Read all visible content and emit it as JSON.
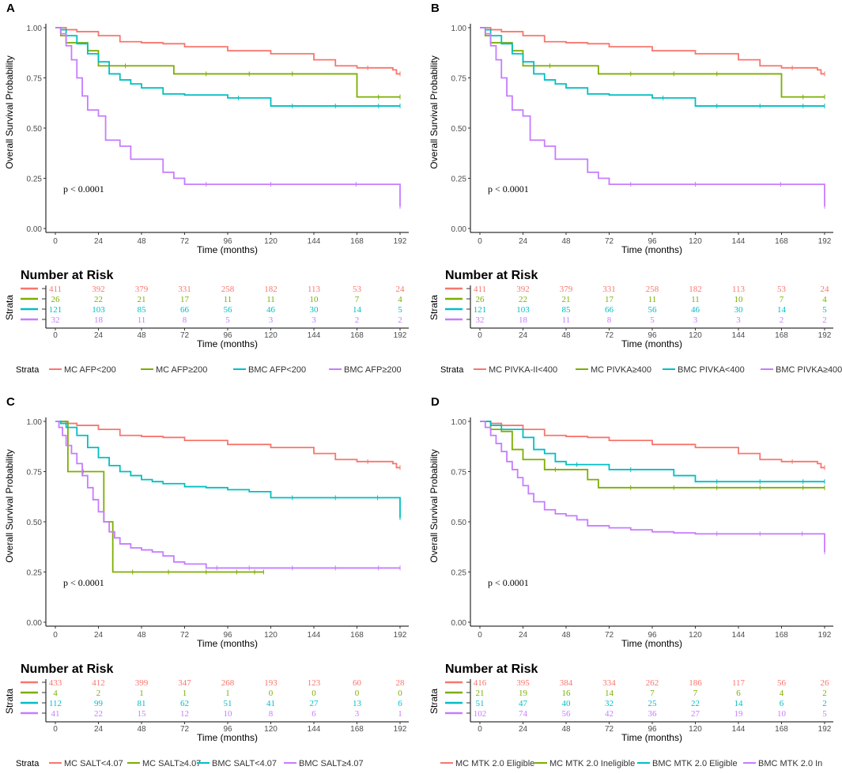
{
  "colors": [
    "#F8766D",
    "#7CAE00",
    "#00BFC4",
    "#C77CFF"
  ],
  "chart_data": [
    {
      "type": "line",
      "panel": "A",
      "title": "",
      "ylabel": "Overall Survival Probability",
      "xlabel": "Time (months)",
      "xlim": [
        0,
        192
      ],
      "ylim": [
        0,
        1
      ],
      "xticks": [
        "0",
        "24",
        "48",
        "72",
        "96",
        "120",
        "144",
        "168",
        "192"
      ],
      "yticks": [
        "0.00",
        "0.25",
        "0.50",
        "0.75",
        "1.00"
      ],
      "pvalue": "p < 0.0001",
      "legend_title": "Strata",
      "risk_title": "Number at Risk",
      "risk_ylabel": "Strata",
      "series": [
        {
          "name": "MC AFP<200",
          "x": [
            0,
            6,
            12,
            24,
            36,
            48,
            60,
            72,
            96,
            120,
            144,
            156,
            168,
            180,
            188,
            190,
            192
          ],
          "y": [
            1,
            0.99,
            0.98,
            0.96,
            0.93,
            0.925,
            0.92,
            0.905,
            0.885,
            0.87,
            0.84,
            0.81,
            0.8,
            0.8,
            0.79,
            0.77,
            0.77
          ],
          "risk": [
            "411",
            "392",
            "379",
            "331",
            "258",
            "182",
            "113",
            "53",
            "24"
          ]
        },
        {
          "name": "MC AFP≥200",
          "x": [
            0,
            3,
            6,
            12,
            18,
            24,
            30,
            48,
            66,
            72,
            96,
            120,
            144,
            168,
            192
          ],
          "y": [
            1,
            0.96,
            0.925,
            0.925,
            0.885,
            0.81,
            0.81,
            0.81,
            0.77,
            0.77,
            0.77,
            0.77,
            0.77,
            0.655,
            0.655
          ],
          "risk": [
            "26",
            "22",
            "21",
            "17",
            "11",
            "11",
            "10",
            "7",
            "4"
          ]
        },
        {
          "name": "BMC AFP<200",
          "x": [
            0,
            3,
            6,
            12,
            18,
            24,
            30,
            36,
            42,
            48,
            60,
            72,
            96,
            108,
            120,
            144,
            168,
            192
          ],
          "y": [
            1,
            0.99,
            0.96,
            0.92,
            0.87,
            0.83,
            0.77,
            0.74,
            0.72,
            0.7,
            0.67,
            0.665,
            0.65,
            0.65,
            0.61,
            0.61,
            0.61,
            0.61
          ],
          "risk": [
            "121",
            "103",
            "85",
            "66",
            "56",
            "46",
            "30",
            "14",
            "5"
          ]
        },
        {
          "name": "BMC AFP≥200",
          "x": [
            0,
            3,
            6,
            9,
            12,
            15,
            18,
            24,
            28,
            36,
            42,
            60,
            66,
            72,
            96,
            144,
            191,
            192
          ],
          "y": [
            1,
            0.97,
            0.91,
            0.84,
            0.75,
            0.66,
            0.59,
            0.56,
            0.44,
            0.41,
            0.345,
            0.28,
            0.25,
            0.22,
            0.22,
            0.22,
            0.22,
            0.11
          ],
          "risk": [
            "32",
            "18",
            "11",
            "8",
            "5",
            "3",
            "3",
            "2",
            "2"
          ]
        }
      ]
    },
    {
      "type": "line",
      "panel": "B",
      "title": "",
      "ylabel": "Overall Survival Probability",
      "xlabel": "Time (months)",
      "xlim": [
        0,
        192
      ],
      "ylim": [
        0,
        1
      ],
      "xticks": [
        "0",
        "24",
        "48",
        "72",
        "96",
        "120",
        "144",
        "168",
        "192"
      ],
      "yticks": [
        "0.00",
        "0.25",
        "0.50",
        "0.75",
        "1.00"
      ],
      "pvalue": "p < 0.0001",
      "legend_title": "Strata",
      "risk_title": "Number at Risk",
      "risk_ylabel": "Strata",
      "series": [
        {
          "name": "MC PIVKA-II<400",
          "x": [
            0,
            6,
            12,
            24,
            36,
            48,
            60,
            72,
            96,
            120,
            144,
            156,
            168,
            180,
            188,
            190,
            192
          ],
          "y": [
            1,
            0.99,
            0.98,
            0.96,
            0.93,
            0.925,
            0.92,
            0.905,
            0.885,
            0.87,
            0.84,
            0.81,
            0.8,
            0.8,
            0.79,
            0.77,
            0.77
          ],
          "risk": [
            "411",
            "392",
            "379",
            "331",
            "258",
            "182",
            "113",
            "53",
            "24"
          ]
        },
        {
          "name": "MC PIVKA≥400",
          "x": [
            0,
            3,
            6,
            12,
            18,
            24,
            30,
            48,
            66,
            72,
            96,
            120,
            144,
            168,
            192
          ],
          "y": [
            1,
            0.96,
            0.925,
            0.925,
            0.885,
            0.81,
            0.81,
            0.81,
            0.77,
            0.77,
            0.77,
            0.77,
            0.77,
            0.655,
            0.655
          ],
          "risk": [
            "26",
            "22",
            "21",
            "17",
            "11",
            "11",
            "10",
            "7",
            "4"
          ]
        },
        {
          "name": "BMC PIVKA<400",
          "x": [
            0,
            3,
            6,
            12,
            18,
            24,
            30,
            36,
            42,
            48,
            60,
            72,
            96,
            108,
            120,
            144,
            168,
            192
          ],
          "y": [
            1,
            0.99,
            0.96,
            0.92,
            0.87,
            0.83,
            0.77,
            0.74,
            0.72,
            0.7,
            0.67,
            0.665,
            0.65,
            0.65,
            0.61,
            0.61,
            0.61,
            0.61
          ],
          "risk": [
            "121",
            "103",
            "85",
            "66",
            "56",
            "46",
            "30",
            "14",
            "5"
          ]
        },
        {
          "name": "BMC PIVKA≥400",
          "x": [
            0,
            3,
            6,
            9,
            12,
            15,
            18,
            24,
            28,
            36,
            42,
            60,
            66,
            72,
            96,
            144,
            191,
            192
          ],
          "y": [
            1,
            0.97,
            0.91,
            0.84,
            0.75,
            0.66,
            0.59,
            0.56,
            0.44,
            0.41,
            0.345,
            0.28,
            0.25,
            0.22,
            0.22,
            0.22,
            0.22,
            0.11
          ],
          "risk": [
            "32",
            "18",
            "11",
            "8",
            "5",
            "3",
            "3",
            "2",
            "2"
          ]
        }
      ]
    },
    {
      "type": "line",
      "panel": "C",
      "title": "",
      "ylabel": "Overall Survival Probability",
      "xlabel": "Time (months)",
      "xlim": [
        0,
        192
      ],
      "ylim": [
        0,
        1
      ],
      "xticks": [
        "0",
        "24",
        "48",
        "72",
        "96",
        "120",
        "144",
        "168",
        "192"
      ],
      "yticks": [
        "0.00",
        "0.25",
        "0.50",
        "0.75",
        "1.00"
      ],
      "pvalue": "p < 0.0001",
      "legend_title": "Strata",
      "risk_title": "Number at Risk",
      "risk_ylabel": "Strata",
      "series": [
        {
          "name": "MC SALT<4.07",
          "x": [
            0,
            6,
            12,
            24,
            36,
            48,
            60,
            72,
            96,
            120,
            144,
            156,
            168,
            180,
            188,
            190,
            192
          ],
          "y": [
            1,
            0.99,
            0.98,
            0.96,
            0.93,
            0.925,
            0.92,
            0.905,
            0.885,
            0.87,
            0.84,
            0.81,
            0.8,
            0.8,
            0.79,
            0.77,
            0.77
          ],
          "risk": [
            "433",
            "412",
            "399",
            "347",
            "268",
            "193",
            "123",
            "60",
            "28"
          ]
        },
        {
          "name": "MC SALT≥4.07",
          "x": [
            0,
            6,
            7,
            24,
            27,
            30,
            32,
            54,
            72,
            96,
            106,
            116
          ],
          "y": [
            1,
            1,
            0.75,
            0.75,
            0.5,
            0.5,
            0.25,
            0.25,
            0.25,
            0.25,
            0.25,
            0.25
          ],
          "risk": [
            "4",
            "2",
            "1",
            "1",
            "1",
            "0",
            "0",
            "0",
            "0"
          ]
        },
        {
          "name": "BMC SALT<4.07",
          "x": [
            0,
            3,
            6,
            12,
            18,
            24,
            30,
            36,
            42,
            48,
            54,
            60,
            72,
            84,
            96,
            108,
            120,
            144,
            168,
            191,
            192
          ],
          "y": [
            1,
            0.99,
            0.97,
            0.93,
            0.87,
            0.82,
            0.78,
            0.75,
            0.73,
            0.71,
            0.7,
            0.69,
            0.675,
            0.67,
            0.66,
            0.65,
            0.62,
            0.62,
            0.62,
            0.62,
            0.52
          ],
          "risk": [
            "112",
            "99",
            "81",
            "62",
            "51",
            "41",
            "27",
            "13",
            "6"
          ]
        },
        {
          "name": "BMC SALT≥4.07",
          "x": [
            0,
            2,
            4,
            6,
            9,
            12,
            15,
            18,
            21,
            24,
            27,
            30,
            33,
            36,
            42,
            48,
            54,
            60,
            66,
            72,
            84,
            96,
            120,
            144,
            168,
            192
          ],
          "y": [
            1,
            0.97,
            0.93,
            0.88,
            0.84,
            0.79,
            0.73,
            0.67,
            0.61,
            0.55,
            0.5,
            0.45,
            0.42,
            0.39,
            0.37,
            0.36,
            0.35,
            0.33,
            0.3,
            0.29,
            0.27,
            0.27,
            0.27,
            0.27,
            0.27,
            0.27
          ],
          "risk": [
            "41",
            "22",
            "15",
            "12",
            "10",
            "8",
            "6",
            "3",
            "1"
          ]
        }
      ]
    },
    {
      "type": "line",
      "panel": "D",
      "title": "",
      "ylabel": "Overall Survival Probability",
      "xlabel": "Time (months)",
      "xlim": [
        0,
        192
      ],
      "ylim": [
        0,
        1
      ],
      "xticks": [
        "0",
        "24",
        "48",
        "72",
        "96",
        "120",
        "144",
        "168",
        "192"
      ],
      "yticks": [
        "0.00",
        "0.25",
        "0.50",
        "0.75",
        "1.00"
      ],
      "pvalue": "p < 0.0001",
      "legend_title": "",
      "risk_title": "Number at Risk",
      "risk_ylabel": "Strata",
      "series": [
        {
          "name": "MC MTK 2.0 Eligible",
          "x": [
            0,
            6,
            12,
            24,
            36,
            48,
            60,
            72,
            96,
            120,
            144,
            156,
            168,
            180,
            188,
            190,
            192
          ],
          "y": [
            1,
            0.99,
            0.98,
            0.96,
            0.93,
            0.925,
            0.92,
            0.905,
            0.885,
            0.87,
            0.84,
            0.81,
            0.8,
            0.8,
            0.79,
            0.77,
            0.77
          ],
          "risk": [
            "416",
            "395",
            "384",
            "334",
            "262",
            "186",
            "117",
            "56",
            "26"
          ]
        },
        {
          "name": "MC MTK 2.0 Ineligible",
          "x": [
            0,
            6,
            12,
            18,
            24,
            30,
            36,
            48,
            60,
            66,
            72,
            96,
            120,
            144,
            168,
            192
          ],
          "y": [
            1,
            0.96,
            0.95,
            0.86,
            0.81,
            0.81,
            0.76,
            0.76,
            0.71,
            0.67,
            0.67,
            0.67,
            0.67,
            0.67,
            0.67,
            0.67
          ],
          "risk": [
            "21",
            "19",
            "16",
            "14",
            "7",
            "7",
            "6",
            "4",
            "2"
          ]
        },
        {
          "name": "BMC MTK 2.0 Eligible",
          "x": [
            0,
            6,
            12,
            24,
            30,
            36,
            42,
            48,
            60,
            72,
            96,
            108,
            120,
            144,
            168,
            192
          ],
          "y": [
            1,
            0.98,
            0.96,
            0.92,
            0.86,
            0.84,
            0.8,
            0.785,
            0.785,
            0.76,
            0.76,
            0.73,
            0.7,
            0.7,
            0.7,
            0.7
          ],
          "risk": [
            "51",
            "47",
            "40",
            "32",
            "25",
            "22",
            "14",
            "6",
            "2"
          ]
        },
        {
          "name": "BMC MTK 2.0 In",
          "x": [
            0,
            3,
            6,
            9,
            12,
            15,
            18,
            21,
            24,
            27,
            30,
            36,
            42,
            48,
            54,
            60,
            72,
            84,
            96,
            108,
            120,
            144,
            168,
            191,
            192
          ],
          "y": [
            1,
            0.97,
            0.93,
            0.89,
            0.85,
            0.8,
            0.76,
            0.72,
            0.68,
            0.64,
            0.6,
            0.56,
            0.54,
            0.53,
            0.51,
            0.48,
            0.47,
            0.46,
            0.45,
            0.445,
            0.44,
            0.44,
            0.44,
            0.44,
            0.35
          ],
          "risk": [
            "102",
            "74",
            "56",
            "42",
            "36",
            "27",
            "19",
            "10",
            "5"
          ]
        }
      ]
    }
  ]
}
